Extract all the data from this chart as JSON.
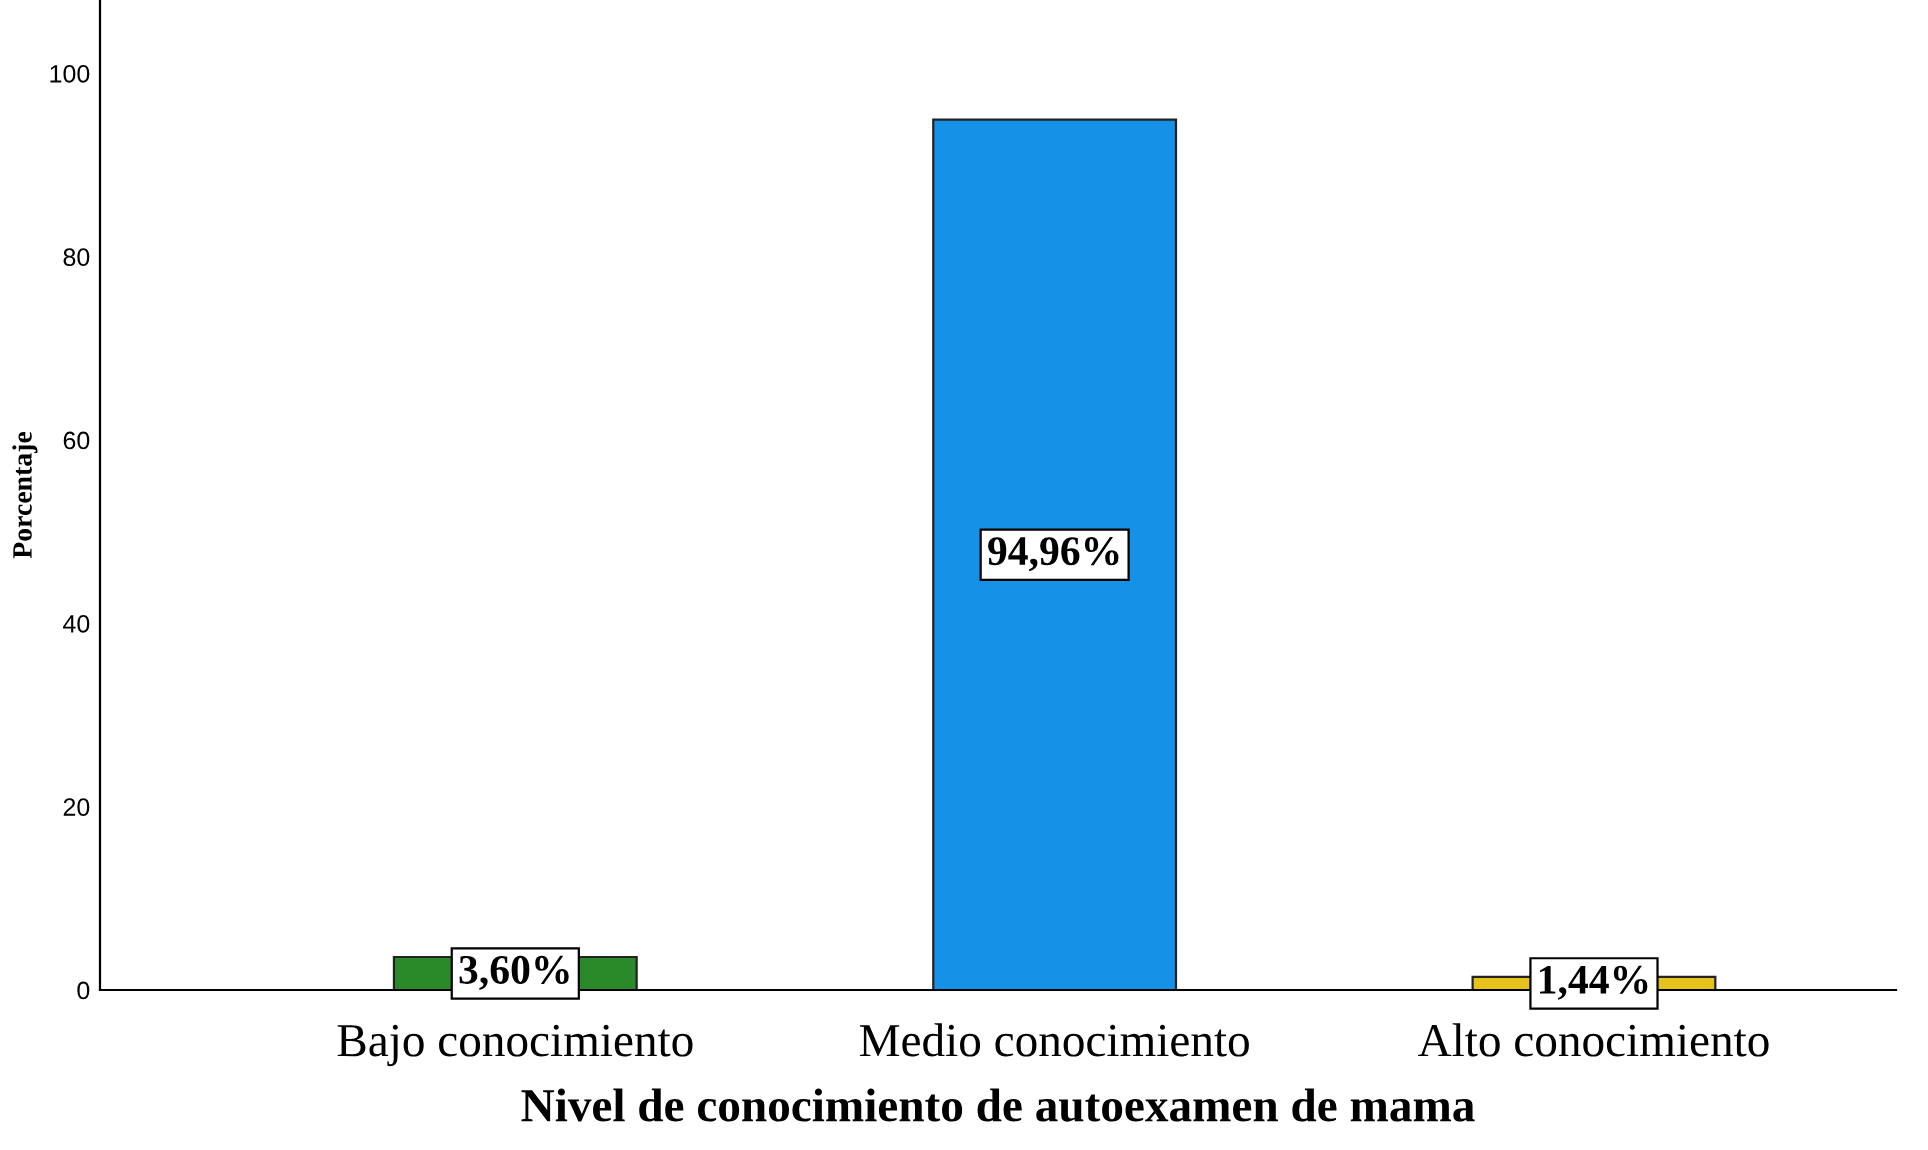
{
  "chart_data": {
    "type": "bar",
    "xlabel": "Nivel de conocimiento de autoexamen de mama",
    "ylabel": "Porcentaje",
    "categories": [
      "Bajo conocimiento",
      "Medio conocimiento",
      "Alto conocimiento"
    ],
    "values": [
      3.6,
      94.96,
      1.44
    ],
    "colors": [
      "#2a8a2a",
      "#1591e8",
      "#e5c21c"
    ],
    "value_labels": [
      "3,60%",
      "94,96%",
      "1,44%"
    ],
    "ylim": [
      0,
      108
    ],
    "yticks": [
      0,
      20,
      40,
      60,
      80,
      100
    ],
    "grid": false,
    "legend": false
  }
}
